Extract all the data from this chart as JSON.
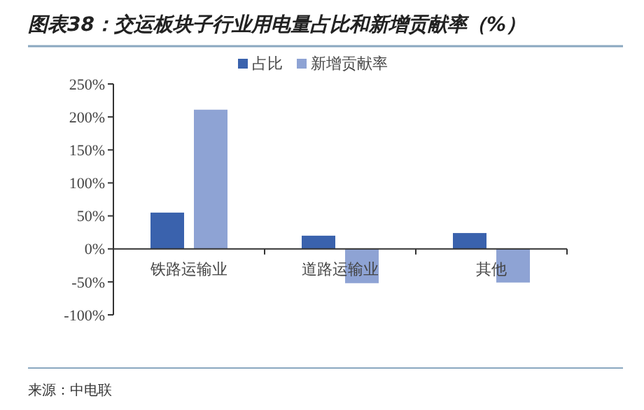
{
  "chart_data": {
    "type": "bar",
    "title": "图表38：交运板块子行业用电量占比和新增贡献率（%）",
    "categories": [
      "铁路运输业",
      "道路运输业",
      "其他"
    ],
    "series": [
      {
        "name": "占比",
        "color": "#3a62ad",
        "values": [
          55,
          20,
          24
        ]
      },
      {
        "name": "新增贡献率",
        "color": "#8ea3d4",
        "values": [
          211,
          -52,
          -51
        ]
      }
    ],
    "ylim": [
      -100,
      250
    ],
    "yticks": [
      {
        "value": -100,
        "label": "-100%"
      },
      {
        "value": -50,
        "label": "-50%"
      },
      {
        "value": 0,
        "label": "0%"
      },
      {
        "value": 50,
        "label": "50%"
      },
      {
        "value": 100,
        "label": "100%"
      },
      {
        "value": 150,
        "label": "150%"
      },
      {
        "value": 200,
        "label": "200%"
      },
      {
        "value": 250,
        "label": "250%"
      }
    ],
    "legend": "top",
    "grid": false,
    "annotations": [
      "来源：中电联"
    ]
  }
}
